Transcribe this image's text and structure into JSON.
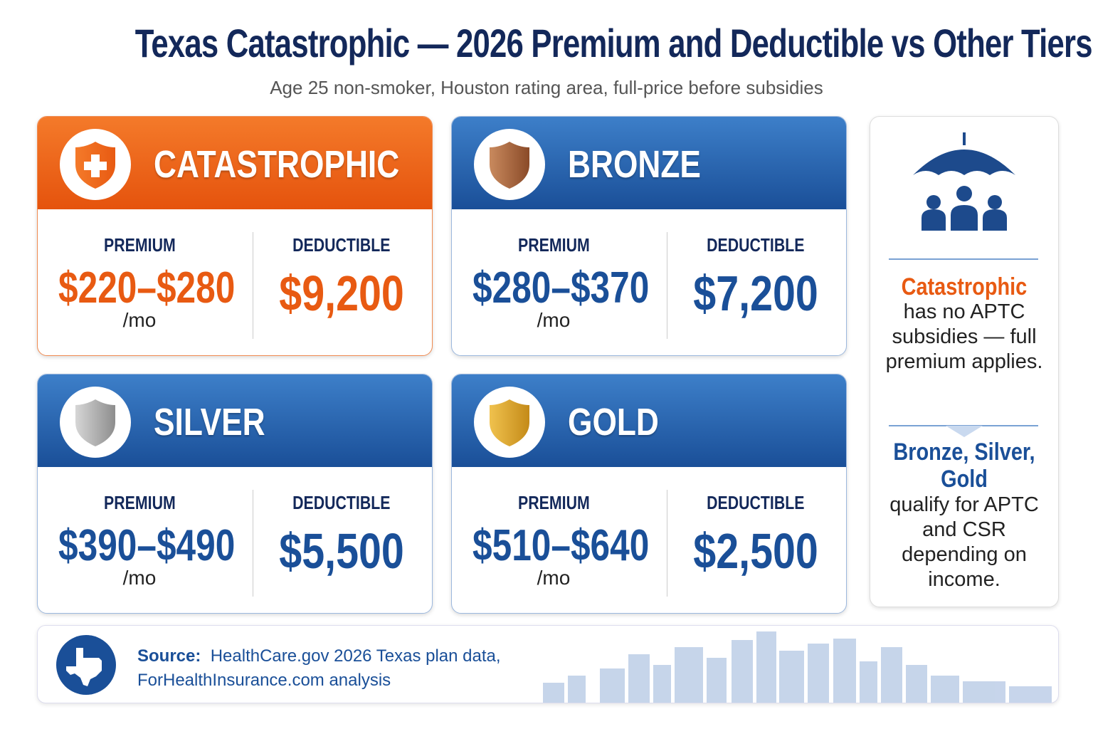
{
  "header": {
    "title": "Texas Catastrophic — 2026 Premium and Deductible vs Other Tiers",
    "subtitle": "Age 25 non-smoker, Houston rating area, full-price before subsidies"
  },
  "tiers": [
    {
      "name": "CATASTROPHIC",
      "premium_label": "PREMIUM",
      "premium": "$220–$280",
      "unit": "/mo",
      "deductible_label": "DEDUCTIBLE",
      "deductible": "$9,200"
    },
    {
      "name": "BRONZE",
      "premium_label": "PREMIUM",
      "premium": "$280–$370",
      "unit": "/mo",
      "deductible_label": "DEDUCTIBLE",
      "deductible": "$7,200"
    },
    {
      "name": "SILVER",
      "premium_label": "PREMIUM",
      "premium": "$390–$490",
      "unit": "/mo",
      "deductible_label": "DEDUCTIBLE",
      "deductible": "$5,500"
    },
    {
      "name": "GOLD",
      "premium_label": "PREMIUM",
      "premium": "$510–$640",
      "unit": "/mo",
      "deductible_label": "DEDUCTIBLE",
      "deductible": "$2,500"
    }
  ],
  "sidebar": {
    "note1_highlight": "Catastrophic",
    "note1_text": "has no APTC subsidies — full premium applies.",
    "note2_highlight": "Bronze, Silver, Gold",
    "note2_text": "qualify for APTC and CSR depending on income."
  },
  "footer": {
    "source_label": "Source:",
    "source_text": "HealthCare.gov 2026 Texas plan data, ForHealthInsurance.com analysis"
  }
}
